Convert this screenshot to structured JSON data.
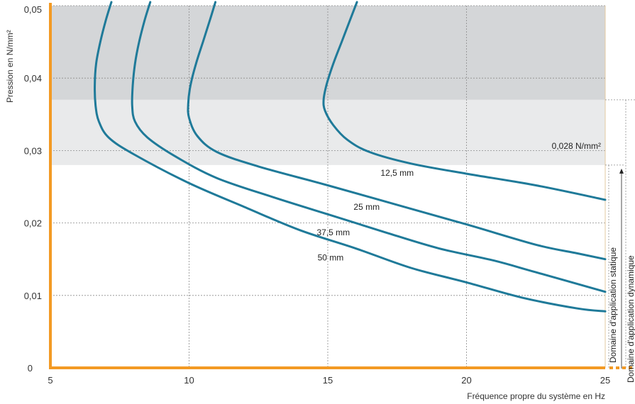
{
  "chart_data": {
    "type": "line",
    "xlabel": "Fréquence propre du système en Hz",
    "ylabel": "Pression en N/mm²",
    "xlim": [
      5,
      25
    ],
    "ylim": [
      0,
      0.05
    ],
    "x_ticks": [
      {
        "value": 5,
        "label": "5"
      },
      {
        "value": 10,
        "label": "10"
      },
      {
        "value": 15,
        "label": "15"
      },
      {
        "value": 20,
        "label": "20"
      },
      {
        "value": 25,
        "label": "25"
      }
    ],
    "y_ticks": [
      {
        "value": 0,
        "label": "0"
      },
      {
        "value": 0.01,
        "label": "0,01"
      },
      {
        "value": 0.02,
        "label": "0,02"
      },
      {
        "value": 0.03,
        "label": "0,03"
      },
      {
        "value": 0.04,
        "label": "0,04"
      },
      {
        "value": 0.05,
        "label": "0,05"
      }
    ],
    "grid": true,
    "bands": [
      {
        "from": 0.037,
        "to": 0.05,
        "color": "#d4d6d8"
      },
      {
        "from": 0.028,
        "to": 0.037,
        "color": "#e9eaeb"
      }
    ],
    "static_limit": {
      "value": 0.028,
      "label": "0,028 N/mm²"
    },
    "dynamic_limit": {
      "value": 0.037
    },
    "range_labels": {
      "static": "Domaine d'application statique",
      "dynamic": "Domaine d'application dynamique"
    },
    "series": [
      {
        "name": "12,5 mm",
        "x": [
          16.05,
          15.8,
          15.5,
          15.2,
          14.95,
          14.85,
          14.9,
          15.2,
          15.7,
          16.5,
          18.0,
          20.0,
          22.5,
          25.0
        ],
        "y": [
          0.0505,
          0.048,
          0.045,
          0.042,
          0.039,
          0.037,
          0.0355,
          0.0335,
          0.0315,
          0.0298,
          0.0282,
          0.0268,
          0.0252,
          0.0232
        ]
      },
      {
        "name": "25 mm",
        "x": [
          10.95,
          10.75,
          10.5,
          10.25,
          10.05,
          9.97,
          10.0,
          10.3,
          11.0,
          12.5,
          15.0,
          17.5,
          20.0,
          22.5,
          24.0,
          25.0
        ],
        "y": [
          0.0505,
          0.048,
          0.045,
          0.042,
          0.039,
          0.0365,
          0.0345,
          0.032,
          0.0298,
          0.0278,
          0.0252,
          0.0225,
          0.0198,
          0.017,
          0.0158,
          0.015
        ]
      },
      {
        "name": "37,5 mm",
        "x": [
          8.6,
          8.4,
          8.2,
          8.05,
          7.97,
          7.95,
          8.05,
          8.5,
          9.5,
          11.0,
          13.0,
          15.0,
          17.0,
          19.0,
          21.0,
          22.5,
          25.0
        ],
        "y": [
          0.0505,
          0.048,
          0.045,
          0.042,
          0.039,
          0.0362,
          0.034,
          0.0318,
          0.0292,
          0.0262,
          0.0236,
          0.0212,
          0.0188,
          0.0165,
          0.0148,
          0.0132,
          0.0105
        ]
      },
      {
        "name": "50 mm",
        "x": [
          7.2,
          7.0,
          6.8,
          6.65,
          6.6,
          6.63,
          6.75,
          7.1,
          8.0,
          10.0,
          12.0,
          14.0,
          16.0,
          18.0,
          20.0,
          22.0,
          24.0,
          25.0
        ],
        "y": [
          0.0505,
          0.048,
          0.045,
          0.042,
          0.039,
          0.0362,
          0.034,
          0.0318,
          0.0295,
          0.0255,
          0.0222,
          0.019,
          0.0165,
          0.0138,
          0.0118,
          0.0097,
          0.0082,
          0.0078
        ]
      }
    ],
    "curve_labels": [
      {
        "text": "12,5 mm",
        "x": 17.5,
        "y": 0.0265
      },
      {
        "text": "25 mm",
        "x": 16.4,
        "y": 0.0218
      },
      {
        "text": "37,5 mm",
        "x": 15.2,
        "y": 0.0183
      },
      {
        "text": "50 mm",
        "x": 15.1,
        "y": 0.0148
      }
    ],
    "colors": {
      "curve": "#1f7a99",
      "axis": "#f39a24",
      "grid": "#8c8c8c"
    }
  }
}
